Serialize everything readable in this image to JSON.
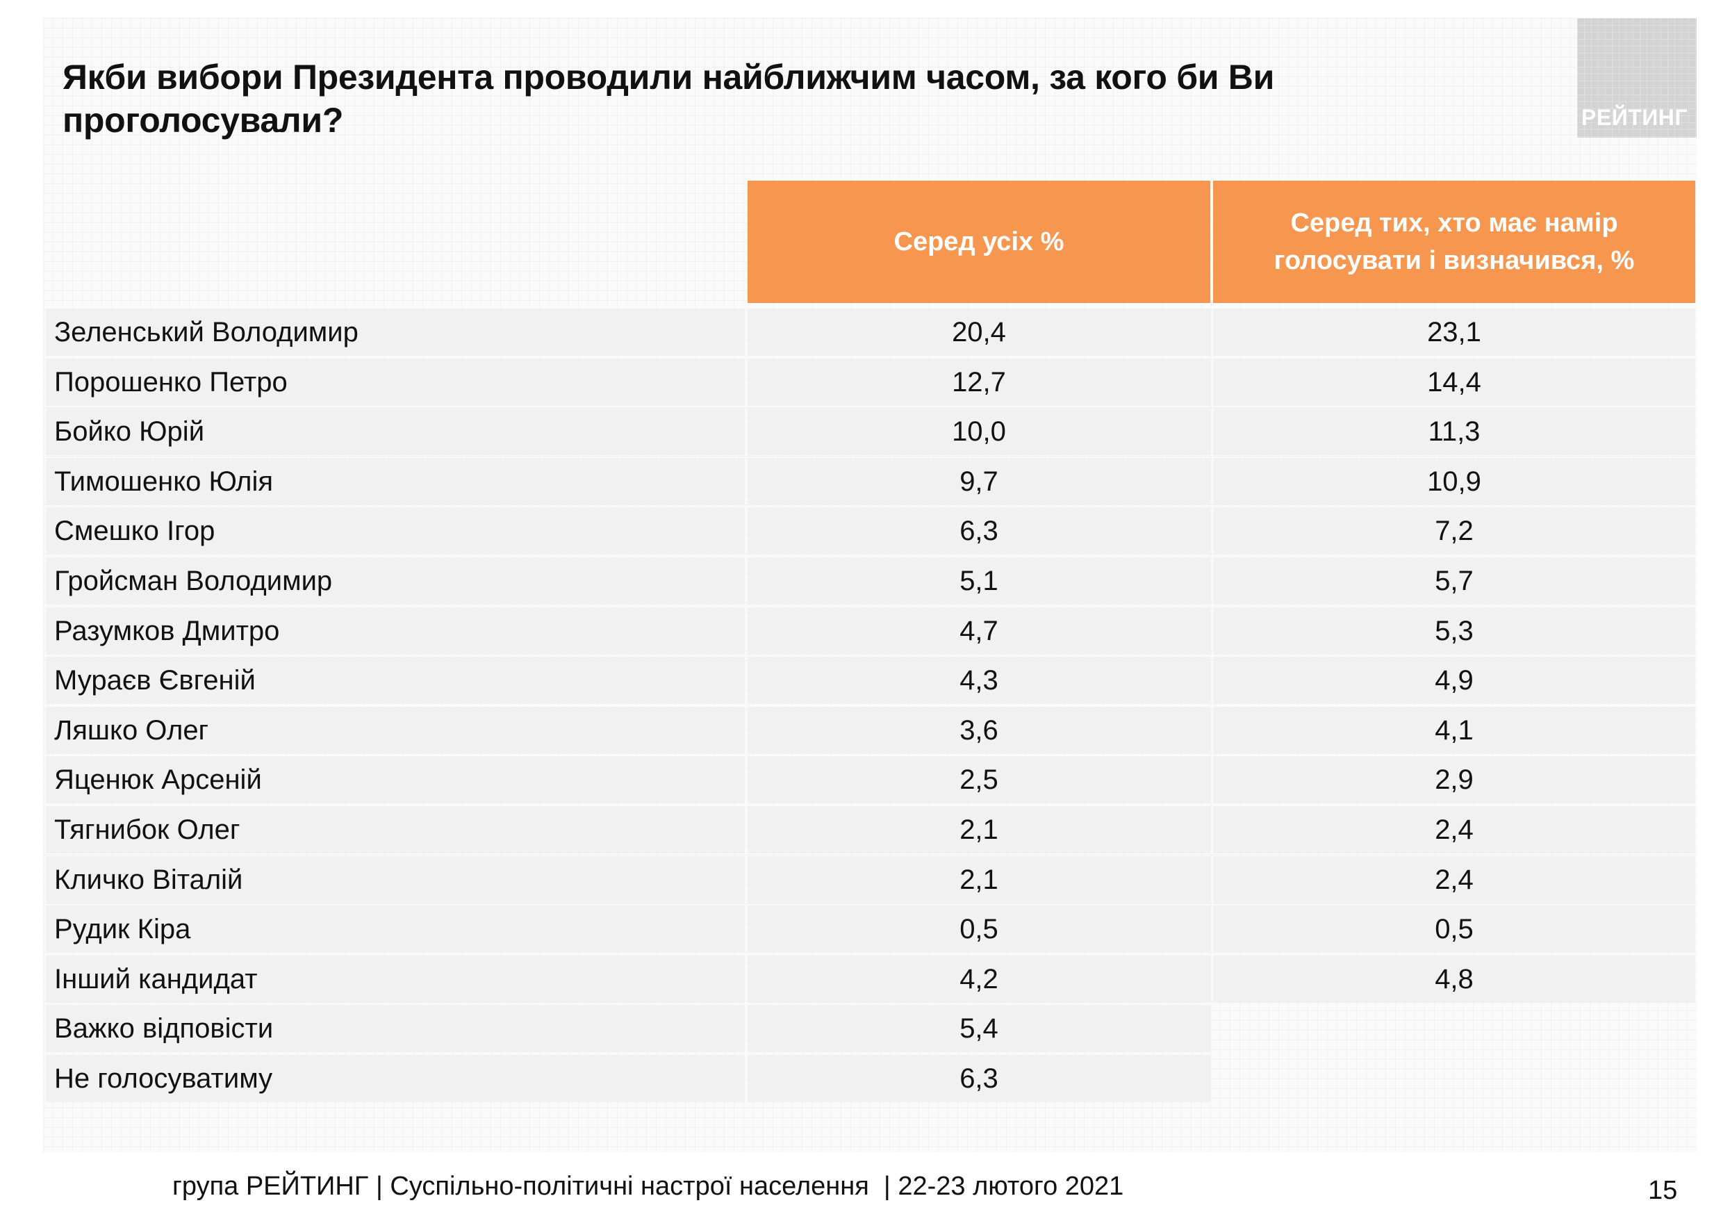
{
  "slide": {
    "title": "Якби вибори Президента проводили найближчим часом, за кого би Ви проголосували?",
    "logo": "РЕЙТИНГ",
    "footer": "група РЕЙТИНГ | Суспільно-політичні настрої населення  | 22-23 лютого 2021",
    "page_number": "15"
  },
  "table": {
    "headers": {
      "all": "Серед усіх %",
      "decided": "Серед тих, хто має намір голосувати і визначився, %"
    },
    "rows": [
      {
        "name": "Зеленський Володимир",
        "all": "20,4",
        "decided": "23,1"
      },
      {
        "name": "Порошенко Петро",
        "all": "12,7",
        "decided": "14,4"
      },
      {
        "name": "Бойко Юрій",
        "all": "10,0",
        "decided": "11,3"
      },
      {
        "name": "Тимошенко Юлія",
        "all": "9,7",
        "decided": "10,9"
      },
      {
        "name": "Смешко Ігор",
        "all": "6,3",
        "decided": "7,2"
      },
      {
        "name": "Гройсман Володимир",
        "all": "5,1",
        "decided": "5,7"
      },
      {
        "name": "Разумков Дмитро",
        "all": "4,7",
        "decided": "5,3"
      },
      {
        "name": "Мураєв Євгеній",
        "all": "4,3",
        "decided": "4,9"
      },
      {
        "name": "Ляшко Олег",
        "all": "3,6",
        "decided": "4,1"
      },
      {
        "name": "Яценюк Арсеній",
        "all": "2,5",
        "decided": "2,9"
      },
      {
        "name": "Тягнибок Олег",
        "all": "2,1",
        "decided": "2,4"
      },
      {
        "name": "Кличко Віталій",
        "all": "2,1",
        "decided": "2,4"
      },
      {
        "name": "Рудик Кіра",
        "all": "0,5",
        "decided": "0,5"
      },
      {
        "name": "Інший кандидат",
        "all": "4,2",
        "decided": "4,8"
      },
      {
        "name": "Важко відповісти",
        "all": "5,4",
        "decided": null
      },
      {
        "name": "Не голосуватиму",
        "all": "6,3",
        "decided": null
      }
    ]
  },
  "colors": {
    "header_bg": "#f7964f",
    "row_bg": "#f1f1f1",
    "logo_bg": "#d3d3d3"
  }
}
